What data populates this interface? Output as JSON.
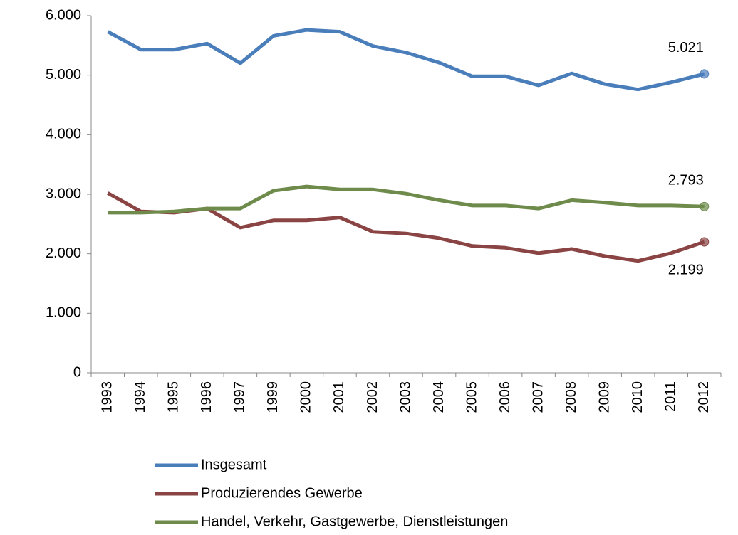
{
  "chart_data": {
    "type": "line",
    "categories": [
      "1993",
      "1994",
      "1995",
      "1996",
      "1997",
      "1999",
      "2000",
      "2001",
      "2002",
      "2003",
      "2004",
      "2005",
      "2006",
      "2007",
      "2008",
      "2009",
      "2010",
      "2011",
      "2012"
    ],
    "series": [
      {
        "name": "Insgesamt",
        "color": "#4a7ebb",
        "values": [
          5730,
          5430,
          5430,
          5530,
          5200,
          5660,
          5760,
          5730,
          5490,
          5380,
          5210,
          4980,
          4980,
          4830,
          5030,
          4850,
          4760,
          4880,
          5021
        ],
        "value_labels": [
          null,
          null,
          null,
          null,
          null,
          null,
          null,
          null,
          null,
          null,
          null,
          null,
          null,
          null,
          null,
          null,
          null,
          null,
          "5.021"
        ]
      },
      {
        "name": "Produzierendes Gewerbe",
        "color": "#8b4444",
        "values": [
          3020,
          2710,
          2690,
          2760,
          2440,
          2560,
          2560,
          2610,
          2370,
          2340,
          2260,
          2130,
          2100,
          2010,
          2080,
          1960,
          1880,
          2010,
          2199
        ],
        "value_labels": [
          null,
          null,
          null,
          null,
          null,
          null,
          null,
          null,
          null,
          null,
          null,
          null,
          null,
          null,
          null,
          null,
          null,
          null,
          "2.199"
        ]
      },
      {
        "name": "Handel, Verkehr, Gastgewerbe, Dienstleistungen",
        "color": "#6e8b4c",
        "values": [
          2690,
          2690,
          2710,
          2760,
          2760,
          3060,
          3130,
          3080,
          3080,
          3010,
          2900,
          2810,
          2810,
          2760,
          2900,
          2860,
          2810,
          2810,
          2793
        ],
        "value_labels": [
          null,
          null,
          null,
          null,
          null,
          null,
          null,
          null,
          null,
          null,
          null,
          null,
          null,
          null,
          null,
          null,
          null,
          null,
          "2.793"
        ]
      }
    ],
    "ylim": [
      0,
      6000
    ],
    "yticks": [
      0,
      {
        "value": 1000,
        "label": "1.000"
      },
      {
        "value": 2000,
        "label": "2.000"
      },
      {
        "value": 3000,
        "label": "3.000"
      },
      {
        "value": 4000,
        "label": "4.000"
      },
      {
        "value": 5000,
        "label": "5.000"
      },
      {
        "value": 6000,
        "label": "6.000"
      }
    ],
    "grid": false,
    "legend": "bottom"
  }
}
